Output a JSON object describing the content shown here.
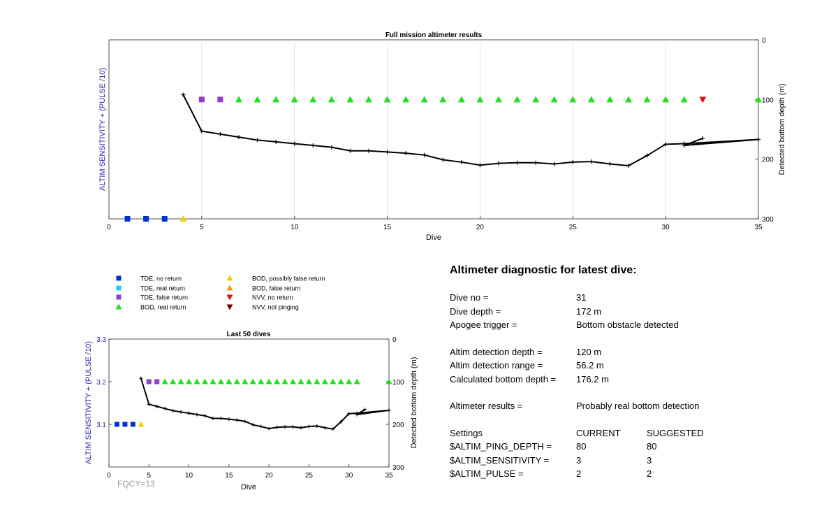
{
  "colors": {
    "tde_no_return": "#0033cc",
    "tde_real_return": "#22ccee",
    "tde_false_return": "#8e3fc6",
    "bod_real_return": "#22dd22",
    "bod_possibly_false": "#f2d000",
    "bod_false": "#ee9922",
    "nvv_no_return": "#dd1111",
    "nvv_not_pinging": "#7a0000",
    "left_axis_label": "#2a2aaa"
  },
  "legend": {
    "items": [
      {
        "label": "TDE, no return",
        "marker": "square",
        "color_key": "tde_no_return"
      },
      {
        "label": "TDE, real return",
        "marker": "square",
        "color_key": "tde_real_return"
      },
      {
        "label": "TDE, false return",
        "marker": "square",
        "color_key": "tde_false_return"
      },
      {
        "label": "BOD, real return",
        "marker": "triangle-up",
        "color_key": "bod_real_return"
      },
      {
        "label": "BOD, possibly false return",
        "marker": "triangle-up",
        "color_key": "bod_possibly_false"
      },
      {
        "label": "BOD, false return",
        "marker": "triangle-up",
        "color_key": "bod_false"
      },
      {
        "label": "NVV, no return",
        "marker": "triangle-down",
        "color_key": "nvv_no_return"
      },
      {
        "label": "NVV, not pinging",
        "marker": "triangle-down",
        "color_key": "nvv_not_pinging"
      }
    ]
  },
  "chart_data": [
    {
      "type": "scatter",
      "title": "Full mission altimeter results",
      "xlabel": "Dive",
      "ylabel_left": "ALTIM SENSITIVITY + (PULSE /10)",
      "ylabel_right": "Detected bottom depth (m)",
      "xlim": [
        0,
        35
      ],
      "xticks": [
        0,
        5,
        10,
        15,
        20,
        25,
        30,
        35
      ],
      "ylim_right": [
        0,
        300
      ],
      "yticks_right": [
        0,
        100,
        200,
        300
      ],
      "right_axis_reversed": true,
      "grid": "vertical",
      "markers": [
        {
          "dive": 1,
          "class": "tde_no_return",
          "depth": 300
        },
        {
          "dive": 2,
          "class": "tde_no_return",
          "depth": 300
        },
        {
          "dive": 3,
          "class": "tde_no_return",
          "depth": 300
        },
        {
          "dive": 4,
          "class": "bod_possibly_false",
          "depth": 300
        },
        {
          "dive": 5,
          "class": "tde_false_return",
          "depth": 100
        },
        {
          "dive": 6,
          "class": "tde_false_return",
          "depth": 100
        },
        {
          "dive": 7,
          "class": "bod_real_return",
          "depth": 100
        },
        {
          "dive": 8,
          "class": "bod_real_return",
          "depth": 100
        },
        {
          "dive": 9,
          "class": "bod_real_return",
          "depth": 100
        },
        {
          "dive": 10,
          "class": "bod_real_return",
          "depth": 100
        },
        {
          "dive": 11,
          "class": "bod_real_return",
          "depth": 100
        },
        {
          "dive": 12,
          "class": "bod_real_return",
          "depth": 100
        },
        {
          "dive": 13,
          "class": "bod_real_return",
          "depth": 100
        },
        {
          "dive": 14,
          "class": "bod_real_return",
          "depth": 100
        },
        {
          "dive": 15,
          "class": "bod_real_return",
          "depth": 100
        },
        {
          "dive": 16,
          "class": "bod_real_return",
          "depth": 100
        },
        {
          "dive": 17,
          "class": "bod_real_return",
          "depth": 100
        },
        {
          "dive": 18,
          "class": "bod_real_return",
          "depth": 100
        },
        {
          "dive": 19,
          "class": "bod_real_return",
          "depth": 100
        },
        {
          "dive": 20,
          "class": "bod_real_return",
          "depth": 100
        },
        {
          "dive": 21,
          "class": "bod_real_return",
          "depth": 100
        },
        {
          "dive": 22,
          "class": "bod_real_return",
          "depth": 100
        },
        {
          "dive": 23,
          "class": "bod_real_return",
          "depth": 100
        },
        {
          "dive": 24,
          "class": "bod_real_return",
          "depth": 100
        },
        {
          "dive": 25,
          "class": "bod_real_return",
          "depth": 100
        },
        {
          "dive": 26,
          "class": "bod_real_return",
          "depth": 100
        },
        {
          "dive": 27,
          "class": "bod_real_return",
          "depth": 100
        },
        {
          "dive": 28,
          "class": "bod_real_return",
          "depth": 100
        },
        {
          "dive": 29,
          "class": "bod_real_return",
          "depth": 100
        },
        {
          "dive": 30,
          "class": "bod_real_return",
          "depth": 100
        },
        {
          "dive": 31,
          "class": "bod_real_return",
          "depth": 100
        },
        {
          "dive": 32,
          "class": "nvv_no_return",
          "depth": 100
        },
        {
          "dive": 35,
          "class": "bod_real_return",
          "depth": 100
        }
      ],
      "bottom_depth_line": [
        [
          4,
          92
        ],
        [
          5,
          153
        ],
        [
          6,
          158
        ],
        [
          7,
          163
        ],
        [
          8,
          168
        ],
        [
          9,
          171
        ],
        [
          10,
          174
        ],
        [
          11,
          177
        ],
        [
          12,
          180
        ],
        [
          13,
          186
        ],
        [
          14,
          186
        ],
        [
          15,
          188
        ],
        [
          16,
          190
        ],
        [
          17,
          193
        ],
        [
          18,
          201
        ],
        [
          19,
          205
        ],
        [
          20,
          210
        ],
        [
          21,
          207
        ],
        [
          22,
          206
        ],
        [
          23,
          206
        ],
        [
          24,
          208
        ],
        [
          25,
          205
        ],
        [
          26,
          204
        ],
        [
          27,
          208
        ],
        [
          28,
          211
        ],
        [
          29,
          194
        ],
        [
          30,
          175
        ],
        [
          31,
          174
        ],
        [
          35,
          167
        ],
        [
          31,
          177
        ],
        [
          32,
          165
        ]
      ]
    },
    {
      "type": "scatter",
      "title": "Last 50 dives",
      "xlabel": "Dive",
      "ylabel_left": "ALTIM SENSITIVITY + (PULSE /10)",
      "ylabel_right": "Detected bottom depth (m)",
      "xlim": [
        0,
        35
      ],
      "xticks": [
        0,
        5,
        10,
        15,
        20,
        25,
        30,
        35
      ],
      "ylim_left": [
        3.0,
        3.3
      ],
      "yticks_left": [
        3.1,
        3.2,
        3.3
      ],
      "ylim_right": [
        0,
        300
      ],
      "yticks_right": [
        0,
        100,
        200,
        300
      ],
      "right_axis_reversed": true,
      "grid": "none",
      "markers": [
        {
          "dive": 1,
          "class": "tde_no_return",
          "value": 3.1
        },
        {
          "dive": 2,
          "class": "tde_no_return",
          "value": 3.1
        },
        {
          "dive": 3,
          "class": "tde_no_return",
          "value": 3.1
        },
        {
          "dive": 4,
          "class": "bod_possibly_false",
          "value": 3.1
        },
        {
          "dive": 5,
          "class": "tde_false_return",
          "value": 3.2
        },
        {
          "dive": 6,
          "class": "tde_false_return",
          "value": 3.2
        },
        {
          "dive": 7,
          "class": "bod_real_return",
          "value": 3.2
        },
        {
          "dive": 8,
          "class": "bod_real_return",
          "value": 3.2
        },
        {
          "dive": 9,
          "class": "bod_real_return",
          "value": 3.2
        },
        {
          "dive": 10,
          "class": "bod_real_return",
          "value": 3.2
        },
        {
          "dive": 11,
          "class": "bod_real_return",
          "value": 3.2
        },
        {
          "dive": 12,
          "class": "bod_real_return",
          "value": 3.2
        },
        {
          "dive": 13,
          "class": "bod_real_return",
          "value": 3.2
        },
        {
          "dive": 14,
          "class": "bod_real_return",
          "value": 3.2
        },
        {
          "dive": 15,
          "class": "bod_real_return",
          "value": 3.2
        },
        {
          "dive": 16,
          "class": "bod_real_return",
          "value": 3.2
        },
        {
          "dive": 17,
          "class": "bod_real_return",
          "value": 3.2
        },
        {
          "dive": 18,
          "class": "bod_real_return",
          "value": 3.2
        },
        {
          "dive": 19,
          "class": "bod_real_return",
          "value": 3.2
        },
        {
          "dive": 20,
          "class": "bod_real_return",
          "value": 3.2
        },
        {
          "dive": 21,
          "class": "bod_real_return",
          "value": 3.2
        },
        {
          "dive": 22,
          "class": "bod_real_return",
          "value": 3.2
        },
        {
          "dive": 23,
          "class": "bod_real_return",
          "value": 3.2
        },
        {
          "dive": 24,
          "class": "bod_real_return",
          "value": 3.2
        },
        {
          "dive": 25,
          "class": "bod_real_return",
          "value": 3.2
        },
        {
          "dive": 26,
          "class": "bod_real_return",
          "value": 3.2
        },
        {
          "dive": 27,
          "class": "bod_real_return",
          "value": 3.2
        },
        {
          "dive": 28,
          "class": "bod_real_return",
          "value": 3.2
        },
        {
          "dive": 29,
          "class": "bod_real_return",
          "value": 3.2
        },
        {
          "dive": 30,
          "class": "bod_real_return",
          "value": 3.2
        },
        {
          "dive": 31,
          "class": "bod_real_return",
          "value": 3.2
        },
        {
          "dive": 35,
          "class": "bod_real_return",
          "value": 3.2
        }
      ],
      "bottom_depth_line": [
        [
          4,
          92
        ],
        [
          5,
          153
        ],
        [
          6,
          158
        ],
        [
          7,
          163
        ],
        [
          8,
          168
        ],
        [
          9,
          171
        ],
        [
          10,
          174
        ],
        [
          11,
          177
        ],
        [
          12,
          180
        ],
        [
          13,
          186
        ],
        [
          14,
          186
        ],
        [
          15,
          188
        ],
        [
          16,
          190
        ],
        [
          17,
          193
        ],
        [
          18,
          201
        ],
        [
          19,
          205
        ],
        [
          20,
          210
        ],
        [
          21,
          207
        ],
        [
          22,
          206
        ],
        [
          23,
          206
        ],
        [
          24,
          208
        ],
        [
          25,
          205
        ],
        [
          26,
          204
        ],
        [
          27,
          208
        ],
        [
          28,
          211
        ],
        [
          29,
          194
        ],
        [
          30,
          175
        ],
        [
          31,
          174
        ],
        [
          35,
          167
        ],
        [
          31,
          177
        ],
        [
          32,
          165
        ]
      ]
    }
  ],
  "diagnostic": {
    "title": "Altimeter diagnostic for latest dive:",
    "dive_no_label": "Dive no =",
    "dive_no_value": "31",
    "dive_depth_label": "Dive depth =",
    "dive_depth_value": "172 m",
    "apogee_label": "Apogee trigger =",
    "apogee_value": "Bottom obstacle detected",
    "det_depth_label": "Altim detection depth =",
    "det_depth_value": "120 m",
    "det_range_label": "Altim detection range =",
    "det_range_value": "56.2 m",
    "calc_depth_label": "Calculated bottom depth =",
    "calc_depth_value": "176.2 m",
    "results_label": "Altimeter results =",
    "results_value": "Probably real bottom detection",
    "settings_label": "Settings",
    "current_label": "CURRENT",
    "suggested_label": "SUGGESTED",
    "ping_depth_label": "$ALTIM_PING_DEPTH =",
    "ping_depth_current": "80",
    "ping_depth_suggested": "80",
    "sensitivity_label": "$ALTIM_SENSITIVITY =",
    "sensitivity_current": "3",
    "sensitivity_suggested": "3",
    "pulse_label": "$ALTIM_PULSE =",
    "pulse_current": "2",
    "pulse_suggested": "2"
  },
  "footer": {
    "fqcy": "FQCY=13"
  }
}
